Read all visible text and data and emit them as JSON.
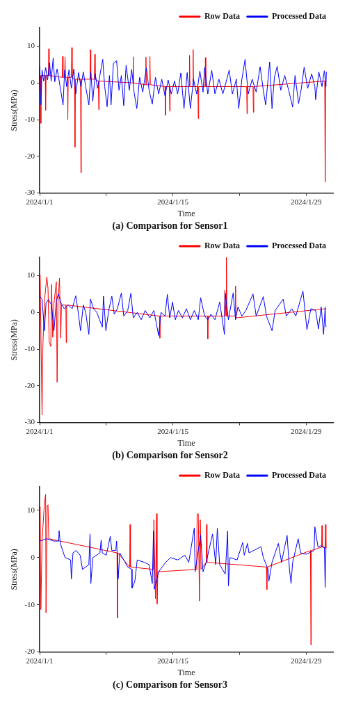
{
  "chart_data": [
    {
      "type": "line",
      "title": "(a) Comparison for Sensor1",
      "xlabel": "Time",
      "ylabel": "Stress(MPa)",
      "xlim": [
        "2024-01-01",
        "2024-01-31T20:00"
      ],
      "xticks": [
        {
          "value": "2024-01-01",
          "label": "2024/1/1"
        },
        {
          "value": "2024-01-08",
          "label": null
        },
        {
          "value": "2024-01-15",
          "label": "2024/1/15"
        },
        {
          "value": "2024-01-22",
          "label": null
        },
        {
          "value": "2024-01-29",
          "label": "2024/1/29"
        }
      ],
      "ylim": [
        -30,
        15
      ],
      "yticks": [
        -30,
        -20,
        -10,
        0,
        10
      ],
      "grid": false,
      "legend": "top right",
      "marker": "none",
      "line_style": "solid",
      "series": [
        {
          "name": "Row Data",
          "color": "#ff0000",
          "x": [
            "2024-01-01T02:00",
            "2024-01-01T03:00",
            "2024-01-01T04:00",
            "2024-01-01T14:00",
            "2024-01-01T15:00",
            "2024-01-01T16:00",
            "2024-01-01T22:00",
            "2024-01-01T23:00",
            "2024-01-02T00:00",
            "2024-01-03T09:00",
            "2024-01-03T10:00",
            "2024-01-03T11:00",
            "2024-01-03T15:00",
            "2024-01-03T16:00",
            "2024-01-03T17:00",
            "2024-01-03T22:00",
            "2024-01-03T23:00",
            "2024-01-04T00:00",
            "2024-01-04T08:00",
            "2024-01-04T09:00",
            "2024-01-04T10:00",
            "2024-01-04T16:00",
            "2024-01-04T17:00",
            "2024-01-04T18:00",
            "2024-01-05T07:00",
            "2024-01-05T08:00",
            "2024-01-05T09:00",
            "2024-01-06T07:00",
            "2024-01-06T08:00",
            "2024-01-06T09:00",
            "2024-01-06T18:00",
            "2024-01-06T19:00",
            "2024-01-06T20:00",
            "2024-01-07T04:00",
            "2024-01-07T05:00",
            "2024-01-07T06:00",
            "2024-01-10T19:00",
            "2024-01-10T20:00",
            "2024-01-10T21:00",
            "2024-01-12T03:00",
            "2024-01-12T04:00",
            "2024-01-12T05:00",
            "2024-01-12T13:00",
            "2024-01-12T14:00",
            "2024-01-12T15:00",
            "2024-01-14T04:00",
            "2024-01-14T05:00",
            "2024-01-14T06:00",
            "2024-01-14T15:00",
            "2024-01-14T16:00",
            "2024-01-14T17:00",
            "2024-01-16T17:00",
            "2024-01-16T18:00",
            "2024-01-16T19:00",
            "2024-01-17T02:00",
            "2024-01-17T03:00",
            "2024-01-17T04:00",
            "2024-01-17T15:00",
            "2024-01-17T16:00",
            "2024-01-17T17:00",
            "2024-01-18T09:00",
            "2024-01-18T10:00",
            "2024-01-18T11:00",
            "2024-01-22T18:00",
            "2024-01-22T19:00",
            "2024-01-22T20:00",
            "2024-01-23T10:00",
            "2024-01-23T11:00",
            "2024-01-23T12:00",
            "2024-01-30T23:00",
            "2024-01-31T00:00",
            "2024-01-31T01:00"
          ],
          "values": [
            2,
            -11,
            2,
            2,
            -7.5,
            2,
            2,
            9.3,
            2,
            1.5,
            7.2,
            1.5,
            1.5,
            7,
            1.5,
            1.5,
            -10,
            1.5,
            1.5,
            9.6,
            1.5,
            1,
            -17.5,
            1,
            1,
            -24.5,
            1,
            1,
            9,
            1,
            1,
            7.8,
            1,
            0.5,
            -7.3,
            0.5,
            0,
            7.1,
            0,
            -0.5,
            7,
            -0.5,
            -0.5,
            7.2,
            -0.5,
            -1,
            -8.8,
            -1,
            -1,
            -7.7,
            -1,
            -1,
            7.5,
            -1,
            -1,
            9.1,
            -1,
            -1,
            -9.7,
            -1,
            -1,
            6.9,
            -1,
            -1,
            -8.4,
            -1,
            -1,
            -8,
            -1,
            0.5,
            -27,
            0.5
          ]
        },
        {
          "name": "Processed Data",
          "color": "#0000ff",
          "x": [
            "2024-01-01T00:00",
            "2024-01-01T03:00",
            "2024-01-01T06:00",
            "2024-01-01T10:00",
            "2024-01-01T15:00",
            "2024-01-01T20:00",
            "2024-01-02T01:00",
            "2024-01-02T05:00",
            "2024-01-02T10:00",
            "2024-01-02T14:00",
            "2024-01-02T20:00",
            "2024-01-03T02:00",
            "2024-01-03T11:00",
            "2024-01-03T15:00",
            "2024-01-03T20:00",
            "2024-01-04T02:00",
            "2024-01-04T08:00",
            "2024-01-04T14:00",
            "2024-01-04T19:00",
            "2024-01-05T02:00",
            "2024-01-05T08:00",
            "2024-01-05T14:00",
            "2024-01-05T20:00",
            "2024-01-06T04:00",
            "2024-01-06T09:00",
            "2024-01-06T14:00",
            "2024-01-06T20:00",
            "2024-01-07T02:00",
            "2024-01-07T15:00",
            "2024-01-07T20:00",
            "2024-01-08T02:00",
            "2024-01-08T08:00",
            "2024-01-08T12:00",
            "2024-01-08T18:00",
            "2024-01-09T02:00",
            "2024-01-09T08:00",
            "2024-01-09T14:00",
            "2024-01-09T20:00",
            "2024-01-10T02:00",
            "2024-01-10T10:00",
            "2024-01-10T16:00",
            "2024-01-10T22:00",
            "2024-01-11T05:00",
            "2024-01-11T12:00",
            "2024-01-11T20:00",
            "2024-01-12T05:00",
            "2024-01-12T12:00",
            "2024-01-12T20:00",
            "2024-01-13T04:00",
            "2024-01-13T12:00",
            "2024-01-13T20:00",
            "2024-01-14T04:00",
            "2024-01-14T12:00",
            "2024-01-14T20:00",
            "2024-01-15T04:00",
            "2024-01-15T12:00",
            "2024-01-15T20:00",
            "2024-01-16T04:00",
            "2024-01-16T12:00",
            "2024-01-16T20:00",
            "2024-01-17T04:00",
            "2024-01-17T12:00",
            "2024-01-17T20:00",
            "2024-01-18T04:00",
            "2024-01-18T08:00",
            "2024-01-18T16:00",
            "2024-01-19T02:00",
            "2024-01-19T10:00",
            "2024-01-19T20:00",
            "2024-01-20T06:00",
            "2024-01-20T16:00",
            "2024-01-20T22:00",
            "2024-01-21T06:00",
            "2024-01-21T16:00",
            "2024-01-21T22:00",
            "2024-01-22T06:00",
            "2024-01-22T14:00",
            "2024-01-22T22:00",
            "2024-01-23T08:00",
            "2024-01-23T18:00",
            "2024-01-24T04:00",
            "2024-01-24T12:00",
            "2024-01-24T18:00",
            "2024-01-25T04:00",
            "2024-01-25T10:00",
            "2024-01-25T16:00",
            "2024-01-25T23:00",
            "2024-01-26T08:00",
            "2024-01-26T18:00",
            "2024-01-27T04:00",
            "2024-01-27T14:00",
            "2024-01-27T20:00",
            "2024-01-28T05:00",
            "2024-01-28T12:00",
            "2024-01-28T19:00",
            "2024-01-29T04:00",
            "2024-01-29T14:00",
            "2024-01-29T22:00",
            "2024-01-30T00:00",
            "2024-01-30T08:00",
            "2024-01-30T16:00",
            "2024-01-30T22:00",
            "2024-01-31T02:00",
            "2024-01-31T03:00"
          ],
          "values": [
            4.5,
            -6,
            3.5,
            0.5,
            4.2,
            0.8,
            5.5,
            0.5,
            6.8,
            0.3,
            3.8,
            0,
            -6,
            3.5,
            -1,
            3.6,
            -1.5,
            3.8,
            -3,
            2.8,
            -1,
            3,
            -1,
            -6,
            3,
            -5,
            2.5,
            -1.5,
            6.4,
            -1,
            -6.5,
            2,
            -6,
            5.3,
            6,
            -2,
            2,
            -6.2,
            4.8,
            -2,
            3.7,
            -2.5,
            -7,
            1.5,
            -2.5,
            4.1,
            -2,
            -5.8,
            1.5,
            -3,
            1,
            -3.5,
            0.8,
            -3,
            0.5,
            -3,
            2.7,
            -7,
            2.8,
            -7,
            1,
            -3,
            3.2,
            -2.5,
            4.2,
            -3,
            3.4,
            -3,
            1,
            -3,
            1,
            3.5,
            -3,
            1,
            -7,
            1,
            6.4,
            -3,
            1,
            -2.5,
            4.4,
            -2,
            -6,
            5.7,
            -7,
            1.5,
            4.5,
            -2,
            2,
            -2,
            -6.6,
            2,
            -5.6,
            -1.5,
            4.3,
            -1.5,
            2.5,
            -1,
            -4.6,
            3,
            -1,
            3.3,
            -1,
            3
          ]
        }
      ]
    },
    {
      "type": "line",
      "title": "(b) Comparison for Sensor2",
      "xlabel": "Time",
      "ylabel": "Stress(MPa)",
      "xlim": [
        "2024-01-01",
        "2024-01-31T20:00"
      ],
      "xticks": [
        {
          "value": "2024-01-01",
          "label": "2024/1/1"
        },
        {
          "value": "2024-01-08",
          "label": null
        },
        {
          "value": "2024-01-15",
          "label": "2024/1/15"
        },
        {
          "value": "2024-01-22",
          "label": null
        },
        {
          "value": "2024-01-29",
          "label": "2024/1/29"
        }
      ],
      "ylim": [
        -30,
        15
      ],
      "yticks": [
        -30,
        -20,
        -10,
        0,
        10
      ],
      "grid": false,
      "legend": "top right",
      "marker": "none",
      "line_style": "solid",
      "series": [
        {
          "name": "Row Data",
          "color": "#ff0000",
          "x": [
            "2024-01-01T00:00",
            "2024-01-01T01:00",
            "2024-01-01T02:00",
            "2024-01-01T06:00",
            "2024-01-01T08:00",
            "2024-01-01T12:00",
            "2024-01-01T18:00",
            "2024-01-01T21:00",
            "2024-01-02T00:00",
            "2024-01-02T04:00",
            "2024-01-02T06:00",
            "2024-01-02T09:00",
            "2024-01-02T12:00",
            "2024-01-02T18:00",
            "2024-01-02T20:00",
            "2024-01-02T22:00",
            "2024-01-03T02:00",
            "2024-01-03T05:00",
            "2024-01-03T07:00",
            "2024-01-03T18:00",
            "2024-01-03T19:00",
            "2024-01-03T20:00",
            "2024-01-13T14:00",
            "2024-01-13T15:00",
            "2024-01-13T16:00",
            "2024-01-18T15:00",
            "2024-01-18T16:00",
            "2024-01-18T17:00",
            "2024-01-20T10:00",
            "2024-01-20T11:00",
            "2024-01-20T14:00",
            "2024-01-20T15:00",
            "2024-01-20T16:00",
            "2024-01-21T13:00",
            "2024-01-21T14:00",
            "2024-01-21T15:00",
            "2024-01-31T02:00"
          ],
          "values": [
            4.5,
            10.2,
            3.5,
            -28,
            -9.5,
            3,
            9.7,
            6.5,
            -8,
            -9.3,
            7.6,
            -6.8,
            2.5,
            8.3,
            -19,
            2.5,
            9.3,
            -7,
            2,
            2,
            -8.2,
            2,
            -1,
            -7,
            -1,
            -1,
            -7.2,
            -1,
            -1,
            6,
            -1,
            15,
            -1,
            -1,
            7.2,
            -1.5,
            1
          ]
        },
        {
          "name": "Processed Data",
          "color": "#0000ff",
          "x": [
            "2024-01-01T00:00",
            "2024-01-01T06:00",
            "2024-01-01T12:00",
            "2024-01-01T16:00",
            "2024-01-01T22:00",
            "2024-01-02T06:00",
            "2024-01-02T12:00",
            "2024-01-02T18:00",
            "2024-01-02T23:00",
            "2024-01-03T06:00",
            "2024-01-03T14:00",
            "2024-01-04T00:00",
            "2024-01-04T10:00",
            "2024-01-04T19:00",
            "2024-01-05T00:00",
            "2024-01-05T07:00",
            "2024-01-05T14:00",
            "2024-01-05T20:00",
            "2024-01-06T04:00",
            "2024-01-06T08:00",
            "2024-01-06T16:00",
            "2024-01-07T00:00",
            "2024-01-07T14:00",
            "2024-01-07T17:00",
            "2024-01-07T23:00",
            "2024-01-08T06:00",
            "2024-01-08T14:00",
            "2024-01-08T20:00",
            "2024-01-09T04:00",
            "2024-01-09T14:00",
            "2024-01-09T20:00",
            "2024-01-10T06:00",
            "2024-01-10T14:00",
            "2024-01-10T20:00",
            "2024-01-11T06:00",
            "2024-01-11T16:00",
            "2024-01-12T02:00",
            "2024-01-12T14:00",
            "2024-01-13T00:00",
            "2024-01-13T12:00",
            "2024-01-13T18:00",
            "2024-01-14T04:00",
            "2024-01-14T10:00",
            "2024-01-14T16:00",
            "2024-01-14T23:00",
            "2024-01-15T06:00",
            "2024-01-15T14:00",
            "2024-01-16T00:00",
            "2024-01-16T10:00",
            "2024-01-16T20:00",
            "2024-01-17T06:00",
            "2024-01-17T16:00",
            "2024-01-17T22:00",
            "2024-01-18T08:00",
            "2024-01-18T16:00",
            "2024-01-19T00:00",
            "2024-01-19T10:00",
            "2024-01-19T22:00",
            "2024-01-20T10:00",
            "2024-01-20T12:00",
            "2024-01-20T20:00",
            "2024-01-21T08:00",
            "2024-01-21T14:00",
            "2024-01-21T20:00",
            "2024-01-22T06:00",
            "2024-01-22T16:00",
            "2024-01-23T10:00",
            "2024-01-23T18:00",
            "2024-01-24T12:00",
            "2024-01-24T20:00",
            "2024-01-25T10:00",
            "2024-01-25T18:00",
            "2024-01-26T14:00",
            "2024-01-26T22:00",
            "2024-01-27T12:00",
            "2024-01-27T22:00",
            "2024-01-28T16:00",
            "2024-01-29T02:00",
            "2024-01-29T12:00",
            "2024-01-30T00:00",
            "2024-01-30T07:00",
            "2024-01-30T14:00",
            "2024-01-30T20:00",
            "2024-01-31T00:00",
            "2024-01-31T02:00"
          ],
          "values": [
            4.5,
            3.5,
            -5,
            2.5,
            3.5,
            2,
            -5,
            3,
            5,
            2.5,
            1,
            2,
            1,
            4.5,
            1,
            -5,
            2,
            0,
            -6,
            3.6,
            1,
            0,
            -4,
            4.4,
            -5,
            0.5,
            4.4,
            -0.5,
            1,
            5.3,
            -1,
            0.5,
            5.2,
            -1.5,
            0,
            -2,
            0.5,
            -1.5,
            0.5,
            -6.3,
            0,
            -1,
            4.9,
            -1.5,
            2.8,
            -2,
            0.5,
            -1.5,
            1,
            -2,
            0.5,
            -2,
            4,
            -1,
            -2,
            -0.5,
            -2,
            2.8,
            -6,
            5.3,
            -2,
            5.3,
            -2,
            1.5,
            -1,
            0.5,
            5,
            -1,
            4.3,
            -1,
            -5,
            0.5,
            3.6,
            -1,
            1,
            -1,
            5.8,
            -4.7,
            1,
            0.5,
            -4.5,
            1.5,
            -6,
            1.5,
            -4
          ]
        }
      ]
    },
    {
      "type": "line",
      "title": "(c) Comparison for Sensor3",
      "xlabel": "Time",
      "ylabel": "Stress(MPa)",
      "xlim": [
        "2024-01-01",
        "2024-01-31T20:00"
      ],
      "xticks": [
        {
          "value": "2024-01-01",
          "label": "2024/1/1"
        },
        {
          "value": "2024-01-08",
          "label": null
        },
        {
          "value": "2024-01-15",
          "label": "2024/1/15"
        },
        {
          "value": "2024-01-22",
          "label": null
        },
        {
          "value": "2024-01-29",
          "label": "2024/1/29"
        }
      ],
      "ylim": [
        -20,
        15
      ],
      "yticks": [
        -20,
        -10,
        0,
        10
      ],
      "grid": false,
      "legend": "top right",
      "marker": "none",
      "line_style": "solid",
      "series": [
        {
          "name": "Row Data",
          "color": "#ff0000",
          "x": [
            "2024-01-01T00:00",
            "2024-01-01T01:00",
            "2024-01-01T03:00",
            "2024-01-01T06:00",
            "2024-01-01T12:00",
            "2024-01-01T15:00",
            "2024-01-01T16:00",
            "2024-01-01T19:00",
            "2024-01-01T21:00",
            "2024-01-01T23:00",
            "2024-01-09T03:00",
            "2024-01-09T04:00",
            "2024-01-09T05:00",
            "2024-01-10T11:00",
            "2024-01-10T12:00",
            "2024-01-10T13:00",
            "2024-01-12T23:00",
            "2024-01-13T00:00",
            "2024-01-13T04:00",
            "2024-01-13T07:00",
            "2024-01-13T08:00",
            "2024-01-13T10:00",
            "2024-01-17T12:00",
            "2024-01-17T13:00",
            "2024-01-17T16:00",
            "2024-01-17T19:00",
            "2024-01-17T21:00",
            "2024-01-17T23:00",
            "2024-01-18T12:00",
            "2024-01-18T13:00",
            "2024-01-18T14:00",
            "2024-01-24T20:00",
            "2024-01-24T21:00",
            "2024-01-24T22:00",
            "2024-01-29T11:00",
            "2024-01-29T12:00",
            "2024-01-29T13:00",
            "2024-01-30T15:00",
            "2024-01-30T16:00",
            "2024-01-30T17:00",
            "2024-01-31T00:00",
            "2024-01-31T01:00",
            "2024-01-31T02:00"
          ],
          "values": [
            3.5,
            10.8,
            -11,
            3.5,
            11.6,
            13.4,
            -11.7,
            11,
            11.2,
            4,
            1,
            -12.8,
            1,
            -2,
            7,
            -2,
            -2.5,
            8,
            -8.7,
            9.3,
            -9.8,
            -3,
            -2.5,
            9.2,
            9.3,
            -9.2,
            8,
            -2.5,
            -1,
            7,
            -1,
            -2,
            -6.8,
            -2,
            1.5,
            -18.5,
            1.5,
            2.2,
            6.8,
            2.2,
            2,
            7,
            2
          ]
        },
        {
          "name": "Processed Data",
          "color": "#0000ff",
          "x": [
            "2024-01-01T00:00",
            "2024-01-01T18:00",
            "2024-01-02T12:00",
            "2024-01-03T00:00",
            "2024-01-03T01:00",
            "2024-01-03T04:00",
            "2024-01-03T16:00",
            "2024-01-04T06:00",
            "2024-01-04T08:00",
            "2024-01-04T12:00",
            "2024-01-04T20:00",
            "2024-01-05T06:00",
            "2024-01-05T12:00",
            "2024-01-06T04:00",
            "2024-01-06T07:00",
            "2024-01-06T09:00",
            "2024-01-06T14:00",
            "2024-01-07T08:00",
            "2024-01-07T11:00",
            "2024-01-07T14:00",
            "2024-01-08T00:00",
            "2024-01-08T10:00",
            "2024-01-08T14:00",
            "2024-01-09T00:00",
            "2024-01-09T02:00",
            "2024-01-09T06:00",
            "2024-01-09T10:00",
            "2024-01-10T06:00",
            "2024-01-10T16:00",
            "2024-01-10T17:00",
            "2024-01-11T00:00",
            "2024-01-11T06:00",
            "2024-01-12T00:00",
            "2024-01-12T12:00",
            "2024-01-12T20:00",
            "2024-01-12T23:00",
            "2024-01-13T01:00",
            "2024-01-13T12:00",
            "2024-01-14T06:00",
            "2024-01-14T18:00",
            "2024-01-15T12:00",
            "2024-01-16T06:00",
            "2024-01-16T16:00",
            "2024-01-17T06:00",
            "2024-01-17T08:00",
            "2024-01-17T22:00",
            "2024-01-18T04:00",
            "2024-01-18T12:00",
            "2024-01-19T04:00",
            "2024-01-19T12:00",
            "2024-01-19T16:00",
            "2024-01-19T22:00",
            "2024-01-20T12:00",
            "2024-01-20T18:00",
            "2024-01-20T20:00",
            "2024-01-21T00:00",
            "2024-01-21T18:00",
            "2024-01-22T08:00",
            "2024-01-22T12:00",
            "2024-01-22T20:00",
            "2024-01-23T00:00",
            "2024-01-24T06:00",
            "2024-01-24T12:00",
            "2024-01-25T00:00",
            "2024-01-25T02:00",
            "2024-01-25T10:00",
            "2024-01-26T02:00",
            "2024-01-26T10:00",
            "2024-01-26T18:00",
            "2024-01-27T00:00",
            "2024-01-27T06:00",
            "2024-01-27T10:00",
            "2024-01-27T14:00",
            "2024-01-28T04:00",
            "2024-01-28T10:00",
            "2024-01-29T00:00",
            "2024-01-29T20:00",
            "2024-01-29T22:00",
            "2024-01-30T06:00",
            "2024-01-30T12:00",
            "2024-01-30T22:00",
            "2024-01-31T00:00",
            "2024-01-31T02:00"
          ],
          "values": [
            3.5,
            4,
            3.5,
            3.5,
            5.7,
            3,
            0,
            -0.5,
            -4.5,
            1,
            1.5,
            0.5,
            -2.5,
            -1.5,
            5,
            -5.5,
            0,
            1,
            3.7,
            1,
            0.5,
            4.5,
            1.5,
            1.5,
            3.5,
            -4.5,
            1,
            -2,
            -2.5,
            -6.5,
            -5,
            -0.5,
            -1,
            -1.5,
            -5.5,
            5.6,
            -6.7,
            -3,
            -1,
            0,
            -0.5,
            0.5,
            -1,
            6.3,
            -3,
            4.8,
            -3,
            -1,
            5,
            -1.5,
            6.2,
            -1.5,
            -3.5,
            5.6,
            -6,
            0,
            -0.5,
            3.2,
            0.5,
            3,
            1,
            2.3,
            0,
            -2.5,
            -5,
            -1,
            3,
            -1,
            2.3,
            4.7,
            -2.5,
            -5.5,
            -1,
            4,
            1,
            0.7,
            1.5,
            6.5,
            2.2,
            2.5,
            2.2,
            -6.3,
            2
          ]
        }
      ]
    }
  ]
}
